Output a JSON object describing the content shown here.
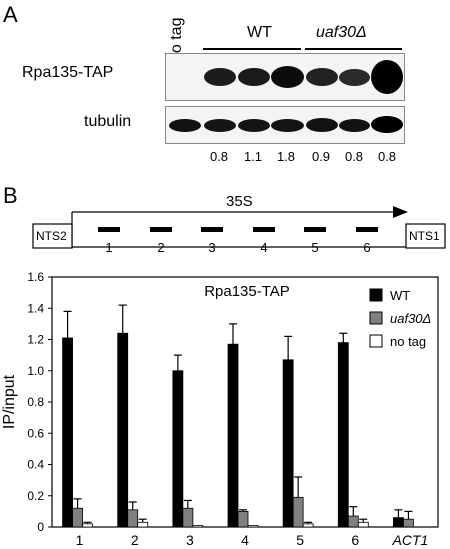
{
  "panel_a": {
    "letter": "A",
    "lane_labels": {
      "no_tag": "no tag",
      "wt": "WT",
      "mutant": "uaf30Δ"
    },
    "rows": {
      "top": "Rpa135-TAP",
      "bottom": "tubulin"
    },
    "ratios": [
      "0.8",
      "1.1",
      "1.8",
      "0.9",
      "0.8",
      "0.8"
    ]
  },
  "panel_b": {
    "letter": "B",
    "diagram": {
      "transcript_label": "35S",
      "left_box": "NTS2",
      "right_box": "NTS1",
      "amplicons": [
        "1",
        "2",
        "3",
        "4",
        "5",
        "6"
      ]
    }
  },
  "chart_data": {
    "type": "bar",
    "title": "Rpa135-TAP",
    "ylabel": "IP/input",
    "xlabel": "",
    "ylim": [
      0,
      1.6
    ],
    "yticks": [
      "0",
      "0.2",
      "0.4",
      "0.6",
      "0.8",
      "1.0",
      "1.2",
      "1.4",
      "1.6"
    ],
    "categories": [
      "1",
      "2",
      "3",
      "4",
      "5",
      "6",
      "ACT1"
    ],
    "legend_position": "top-right",
    "series": [
      {
        "name": "WT",
        "color": "#000000",
        "values": [
          1.21,
          1.24,
          1.0,
          1.17,
          1.07,
          1.18,
          0.06
        ],
        "errors": [
          0.17,
          0.18,
          0.1,
          0.13,
          0.15,
          0.06,
          0.05
        ]
      },
      {
        "name": "uaf30Δ",
        "color": "#808080",
        "values": [
          0.12,
          0.11,
          0.12,
          0.1,
          0.19,
          0.07,
          0.05
        ],
        "errors": [
          0.06,
          0.05,
          0.05,
          0.01,
          0.13,
          0.06,
          0.05
        ]
      },
      {
        "name": "no tag",
        "color": "#ffffff",
        "values": [
          0.02,
          0.03,
          0.01,
          0.01,
          0.02,
          0.03,
          0.0
        ],
        "errors": [
          0.01,
          0.02,
          0.0,
          0.0,
          0.01,
          0.02,
          0.0
        ]
      }
    ]
  }
}
